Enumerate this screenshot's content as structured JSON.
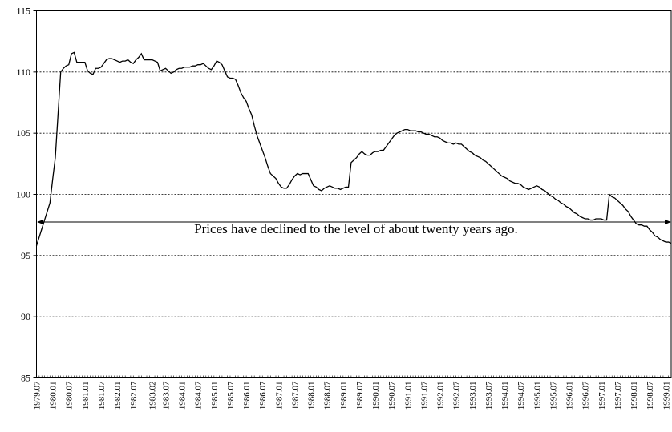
{
  "chart_data": {
    "type": "line",
    "annotation": "Prices have declined to the level of about twenty years ago.",
    "categories": [
      "1979.07",
      null,
      null,
      null,
      null,
      null,
      "1980.01",
      null,
      null,
      null,
      null,
      null,
      "1980.07",
      null,
      null,
      null,
      null,
      null,
      "1981.01",
      null,
      null,
      null,
      null,
      null,
      "1981.07",
      null,
      null,
      null,
      null,
      null,
      "1982.01",
      null,
      null,
      null,
      null,
      null,
      "1982.07",
      null,
      null,
      null,
      null,
      null,
      null,
      "1983.02",
      null,
      null,
      null,
      null,
      "1983.07",
      null,
      null,
      null,
      null,
      null,
      "1984.01",
      null,
      null,
      null,
      null,
      null,
      "1984.07",
      null,
      null,
      null,
      null,
      null,
      "1985.01",
      null,
      null,
      null,
      null,
      null,
      "1985.07",
      null,
      null,
      null,
      null,
      null,
      "1986.01",
      null,
      null,
      null,
      null,
      null,
      "1986.07",
      null,
      null,
      null,
      null,
      null,
      "1987.01",
      null,
      null,
      null,
      null,
      null,
      "1987.07",
      null,
      null,
      null,
      null,
      null,
      "1988.01",
      null,
      null,
      null,
      null,
      null,
      "1988.07",
      null,
      null,
      null,
      null,
      null,
      "1989.01",
      null,
      null,
      null,
      null,
      null,
      "1989.07",
      null,
      null,
      null,
      null,
      null,
      "1990.01",
      null,
      null,
      null,
      null,
      null,
      "1990.07",
      null,
      null,
      null,
      null,
      null,
      "1991.01",
      null,
      null,
      null,
      null,
      null,
      "1991.07",
      null,
      null,
      null,
      null,
      null,
      "1992.01",
      null,
      null,
      null,
      null,
      null,
      "1992.07",
      null,
      null,
      null,
      null,
      null,
      "1993.01",
      null,
      null,
      null,
      null,
      null,
      "1993.07",
      null,
      null,
      null,
      null,
      null,
      "1994.01",
      null,
      null,
      null,
      null,
      null,
      "1994.07",
      null,
      null,
      null,
      null,
      null,
      "1995.01",
      null,
      null,
      null,
      null,
      null,
      "1995.07",
      null,
      null,
      null,
      null,
      null,
      "1996.01",
      null,
      null,
      null,
      null,
      null,
      "1996.07",
      null,
      null,
      null,
      null,
      null,
      "1997.01",
      null,
      null,
      null,
      null,
      null,
      "1997.07",
      null,
      null,
      null,
      null,
      null,
      "1998.01",
      null,
      null,
      null,
      null,
      null,
      "1998.07",
      null,
      null,
      null,
      null,
      null,
      "1999.01",
      null,
      null
    ],
    "values": [
      95.8,
      96.5,
      97.2,
      97.9,
      98.6,
      99.3,
      101.2,
      103.0,
      106.5,
      110.0,
      110.3,
      110.5,
      110.6,
      111.5,
      111.6,
      110.8,
      110.8,
      110.8,
      110.8,
      110.1,
      109.9,
      109.8,
      110.3,
      110.3,
      110.4,
      110.7,
      111.0,
      111.1,
      111.1,
      111.0,
      110.9,
      110.8,
      110.9,
      110.9,
      111.0,
      110.8,
      110.7,
      111.0,
      111.2,
      111.5,
      111.0,
      111.0,
      111.0,
      111.0,
      110.9,
      110.8,
      110.1,
      110.2,
      110.3,
      110.1,
      109.9,
      110.0,
      110.2,
      110.3,
      110.3,
      110.4,
      110.4,
      110.4,
      110.5,
      110.5,
      110.6,
      110.6,
      110.7,
      110.5,
      110.3,
      110.2,
      110.5,
      110.9,
      110.8,
      110.6,
      110.1,
      109.6,
      109.5,
      109.5,
      109.4,
      108.9,
      108.3,
      107.9,
      107.6,
      107.0,
      106.5,
      105.6,
      104.8,
      104.2,
      103.6,
      103.0,
      102.3,
      101.7,
      101.5,
      101.3,
      100.9,
      100.6,
      100.5,
      100.5,
      100.8,
      101.2,
      101.5,
      101.7,
      101.6,
      101.7,
      101.7,
      101.7,
      101.2,
      100.7,
      100.6,
      100.4,
      100.3,
      100.5,
      100.6,
      100.7,
      100.6,
      100.5,
      100.5,
      100.4,
      100.5,
      100.6,
      100.6,
      102.6,
      102.8,
      103.0,
      103.3,
      103.5,
      103.3,
      103.2,
      103.2,
      103.4,
      103.5,
      103.5,
      103.6,
      103.6,
      103.9,
      104.2,
      104.5,
      104.8,
      105.0,
      105.1,
      105.2,
      105.3,
      105.3,
      105.2,
      105.2,
      105.2,
      105.1,
      105.1,
      105.0,
      104.9,
      104.9,
      104.8,
      104.7,
      104.7,
      104.6,
      104.4,
      104.3,
      104.2,
      104.2,
      104.1,
      104.2,
      104.1,
      104.1,
      103.9,
      103.7,
      103.5,
      103.4,
      103.2,
      103.1,
      103.0,
      102.8,
      102.7,
      102.5,
      102.3,
      102.1,
      101.9,
      101.7,
      101.5,
      101.4,
      101.3,
      101.1,
      101.0,
      100.9,
      100.9,
      100.8,
      100.6,
      100.5,
      100.4,
      100.5,
      100.6,
      100.7,
      100.6,
      100.4,
      100.3,
      100.1,
      99.9,
      99.8,
      99.6,
      99.5,
      99.3,
      99.2,
      99.0,
      98.9,
      98.7,
      98.5,
      98.4,
      98.2,
      98.1,
      98.0,
      98.0,
      97.9,
      97.9,
      98.0,
      98.0,
      98.0,
      97.9,
      97.9,
      100.0,
      99.8,
      99.7,
      99.5,
      99.3,
      99.1,
      98.8,
      98.6,
      98.2,
      97.9,
      97.6,
      97.5,
      97.5,
      97.4,
      97.4,
      97.1,
      96.9,
      96.6,
      96.5,
      96.3,
      96.2,
      96.1,
      96.1,
      96.0
    ],
    "color": "#000000",
    "ylim": [
      85,
      115
    ],
    "yticks": [
      85,
      90,
      95,
      100,
      105,
      110,
      115
    ],
    "grid": true
  }
}
